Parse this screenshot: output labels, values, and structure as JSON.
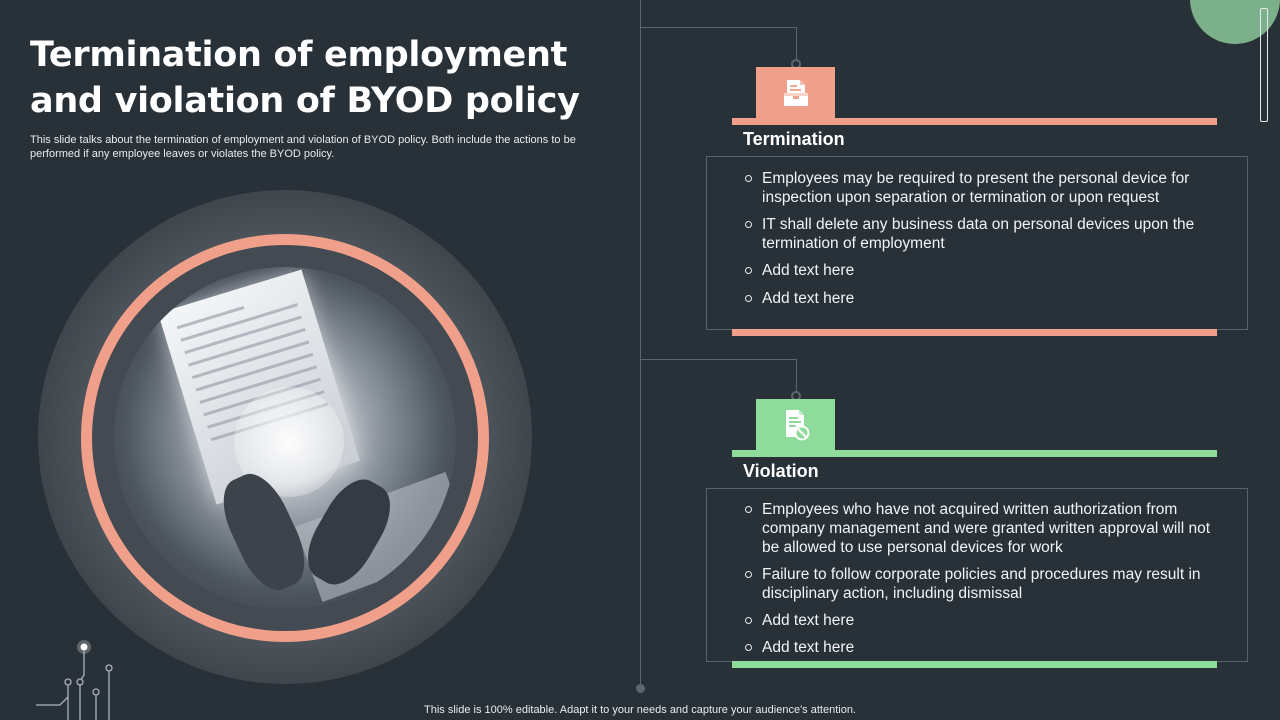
{
  "title": "Termination of employment and violation of BYOD policy",
  "subtitle": "This slide talks about the termination of employment and violation of BYOD policy. Both include the actions to be performed if any employee leaves or violates the BYOD policy.",
  "footer": "This slide is 100% editable. Adapt it to your needs and capture your audience's attention.",
  "colors": {
    "background": "#283038",
    "salmon": "#f0a08a",
    "green": "#8edb9c",
    "sage": "#7bb08a"
  },
  "termination": {
    "icon": "document-folder-icon",
    "heading": "Termination",
    "items": [
      "Employees may be required to present the personal device for inspection upon separation or termination or upon request",
      "IT shall delete any business data on personal devices upon the termination of employment",
      "Add text here",
      "Add text here"
    ]
  },
  "violation": {
    "icon": "document-blocked-icon",
    "heading": "Violation",
    "items": [
      "Employees who have not acquired written authorization from company management and were granted written approval will not be allowed to use personal devices for work",
      "Failure to follow corporate policies and procedures may result in disciplinary action, including dismissal",
      "Add text here",
      "Add text here"
    ]
  }
}
